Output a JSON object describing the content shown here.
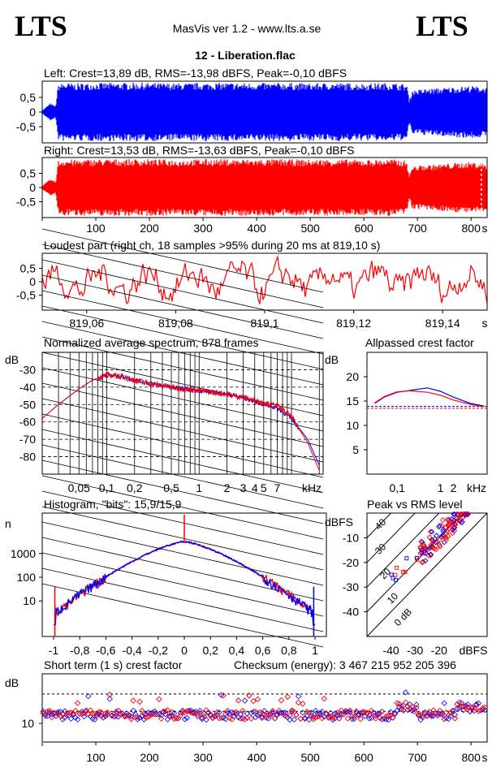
{
  "header": {
    "logo_left": "LTS",
    "logo_right": "LTS",
    "app": "MasVis ver 1.2 - www.lts.a.se",
    "file": "12 - Liberation.flac"
  },
  "colors": {
    "left": "#0000ff",
    "right": "#ff0000",
    "frame": "#000000"
  },
  "chart_data": [
    {
      "id": "left",
      "type": "area",
      "title": "Left: Crest=13,89 dB, RMS=-13,98 dBFS, Peak=-0,10 dBFS",
      "yticks": [
        "0,5",
        "0",
        "-0,5"
      ],
      "ylim": [
        -1,
        1
      ],
      "xlim": [
        0,
        830
      ],
      "envelope": {
        "x": [
          0,
          15,
          25,
          30,
          40,
          60,
          100,
          150,
          200,
          250,
          300,
          350,
          400,
          450,
          500,
          540,
          560,
          600,
          650,
          680,
          685,
          690,
          720,
          760,
          800,
          830
        ],
        "amp": [
          0.05,
          0.3,
          0.2,
          0.95,
          1.0,
          0.98,
          1.0,
          1.0,
          1.0,
          0.98,
          1.0,
          1.0,
          0.99,
          1.0,
          0.98,
          1.0,
          0.99,
          0.98,
          1.0,
          0.95,
          0.4,
          0.75,
          0.8,
          0.85,
          0.9,
          0.85
        ]
      }
    },
    {
      "id": "right",
      "type": "area",
      "title": "Right: Crest=13,53 dB, RMS=-13,63 dBFS, Peak=-0,10 dBFS",
      "yticks": [
        "0,5",
        "0",
        "-0,5"
      ],
      "ylim": [
        -1,
        1
      ],
      "xlim": [
        0,
        830
      ],
      "xticks": [
        "100",
        "200",
        "300",
        "400",
        "500",
        "600",
        "700",
        "800"
      ],
      "xunit": "s",
      "marker_x": 819.1,
      "envelope": {
        "x": [
          0,
          15,
          25,
          30,
          40,
          60,
          100,
          150,
          200,
          250,
          300,
          350,
          400,
          450,
          500,
          540,
          560,
          600,
          650,
          680,
          685,
          690,
          720,
          760,
          800,
          830
        ],
        "amp": [
          0.05,
          0.3,
          0.2,
          0.95,
          1.0,
          0.98,
          1.0,
          1.0,
          1.0,
          0.98,
          1.0,
          1.0,
          0.99,
          1.0,
          0.98,
          1.0,
          0.99,
          0.98,
          1.0,
          0.95,
          0.4,
          0.75,
          0.8,
          0.85,
          0.9,
          0.85
        ]
      }
    },
    {
      "id": "loudest",
      "type": "line",
      "title": "Loudest part (right ch, 18 samples >95% during 20 ms at 819,10 s)",
      "yticks": [
        "0,5",
        "0",
        "-0,5"
      ],
      "ylim": [
        -1,
        1
      ],
      "xlim": [
        819.05,
        819.15
      ],
      "xticks": [
        "819,06",
        "819,08",
        "819,1",
        "819,12",
        "819,14"
      ],
      "xunit": "s"
    },
    {
      "id": "spectrum",
      "type": "line",
      "title": "Normalized average spectrum, 878 frames",
      "ylabel": "dB",
      "yticks": [
        "-30",
        "-40",
        "-50",
        "-60",
        "-70",
        "-80"
      ],
      "xticks": [
        "0,05",
        "0,1",
        "0,2",
        "0,5",
        "1",
        "2",
        "3",
        "4",
        "5",
        "7"
      ],
      "xunit": "kHz",
      "ylim": [
        -90,
        -20
      ],
      "series": [
        {
          "name": "",
          "x": [
            0.02,
            0.03,
            0.05,
            0.07,
            0.1,
            0.15,
            0.2,
            0.3,
            0.5,
            0.7,
            1,
            2,
            3,
            5,
            7,
            10,
            15,
            20
          ],
          "values": [
            -58,
            -50,
            -41,
            -36,
            -33,
            -34,
            -36,
            -38,
            -40,
            -41,
            -42,
            -44,
            -46,
            -50,
            -52,
            -58,
            -70,
            -85
          ]
        },
        {
          "name": "",
          "x": [
            0.02,
            0.03,
            0.05,
            0.07,
            0.1,
            0.15,
            0.2,
            0.3,
            0.5,
            0.7,
            1,
            2,
            3,
            5,
            7,
            10,
            15,
            20
          ],
          "values": [
            -58,
            -50,
            -41,
            -36,
            -33,
            -34,
            -36,
            -38,
            -40,
            -41,
            -42,
            -44,
            -46,
            -49,
            -51,
            -57,
            -72,
            -88
          ]
        }
      ]
    },
    {
      "id": "allpass",
      "type": "line",
      "title": "Allpassed crest factor",
      "ylabel": "dB",
      "yticks": [
        "20",
        "15",
        "10",
        "5"
      ],
      "xticks": [
        "0,1",
        "1",
        "2"
      ],
      "xunit": "kHz",
      "ylim": [
        0,
        25
      ],
      "series": [
        {
          "name": "",
          "x": [
            0.03,
            0.05,
            0.1,
            0.2,
            0.5,
            1,
            2,
            5,
            10
          ],
          "values": [
            14.5,
            15.8,
            16.8,
            17.2,
            17.7,
            17,
            15.8,
            14.5,
            14
          ]
        },
        {
          "name": "",
          "x": [
            0.03,
            0.05,
            0.1,
            0.2,
            0.5,
            1,
            2,
            5,
            10
          ],
          "values": [
            14.6,
            15.9,
            16.9,
            17.1,
            16.8,
            16.2,
            15.2,
            14.3,
            13.8
          ]
        }
      ],
      "ref_lines": [
        13.9,
        13.5
      ]
    },
    {
      "id": "histogram",
      "type": "line",
      "title": "Histogram, \"bits\": 15,9/15,9",
      "ylabel": "n",
      "yticks": [
        "1000",
        "100",
        "10"
      ],
      "xticks": [
        "-1",
        "-0,8",
        "-0,6",
        "-0,4",
        "-0,2",
        "0",
        "0,2",
        "0,4",
        "0,6",
        "0,8",
        "1"
      ],
      "xlim": [
        -1,
        1
      ]
    },
    {
      "id": "peakrms",
      "type": "scatter",
      "title": "Peak vs RMS level",
      "ylabel": "dBFS",
      "yticks": [
        "-10",
        "-20",
        "-30",
        "-40"
      ],
      "xticks": [
        "-40",
        "-30",
        "-20"
      ],
      "xunit": "dBFS",
      "diag_labels": [
        "40",
        "30",
        "20",
        "10",
        "0 dB"
      ]
    },
    {
      "id": "crest",
      "type": "scatter",
      "title": "Short term (1 s) crest factor",
      "checksum": "Checksum (energy):  3 467 215 952 205 396",
      "ylabel": "dB",
      "yticks": [
        "10"
      ],
      "xticks": [
        "100",
        "200",
        "300",
        "400",
        "500",
        "600",
        "700",
        "800"
      ],
      "xunit": "s"
    }
  ]
}
